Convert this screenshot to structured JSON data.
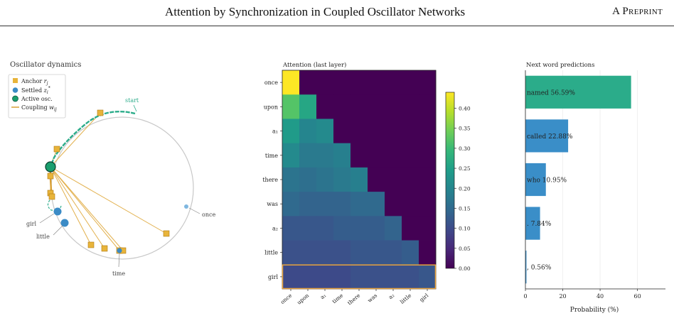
{
  "header": {
    "title": "Attention by Synchronization in Coupled Oscillator Networks",
    "preprint": "A Preprint"
  },
  "panel_oscillator": {
    "title": "Oscillator dynamics",
    "legend": [
      {
        "label": "Anchor r_j",
        "symbol": "square",
        "color": "#e8b43a"
      },
      {
        "label": "Settled z_i*",
        "symbol": "circle",
        "color": "#3b8bc6"
      },
      {
        "label": "Active osc.",
        "symbol": "circle",
        "color": "#1a9e6e"
      },
      {
        "label": "Coupling w_ij",
        "symbol": "line",
        "color": "#d9a035"
      }
    ],
    "labels": {
      "start": "start",
      "once": "once",
      "girl": "girl",
      "little": "little",
      "time": "time"
    }
  },
  "panel_attention": {
    "title": "Attention (last layer)",
    "colorbar_ticks": [
      "0.00",
      "0.05",
      "0.10",
      "0.15",
      "0.20",
      "0.25",
      "0.30",
      "0.35",
      "0.40"
    ]
  },
  "panel_predictions": {
    "title": "Next word predictions",
    "xlabel": "Probability (%)"
  },
  "chart_data": [
    {
      "type": "heatmap",
      "title": "Attention (last layer)",
      "rows": [
        "once",
        "upon",
        "a1",
        "time",
        "there",
        "was",
        "a2",
        "little",
        "girl"
      ],
      "cols": [
        "once",
        "upon",
        "a1",
        "time",
        "there",
        "was",
        "a2",
        "little",
        "girl"
      ],
      "values": [
        [
          0.44,
          null,
          null,
          null,
          null,
          null,
          null,
          null,
          null
        ],
        [
          0.32,
          0.26,
          null,
          null,
          null,
          null,
          null,
          null,
          null
        ],
        [
          0.24,
          0.2,
          0.21,
          null,
          null,
          null,
          null,
          null,
          null
        ],
        [
          0.21,
          0.18,
          0.18,
          0.19,
          null,
          null,
          null,
          null,
          null
        ],
        [
          0.17,
          0.16,
          0.17,
          0.18,
          0.19,
          null,
          null,
          null,
          null
        ],
        [
          0.15,
          0.14,
          0.14,
          0.14,
          0.15,
          0.15,
          null,
          null,
          null
        ],
        [
          0.12,
          0.12,
          0.12,
          0.13,
          0.13,
          0.13,
          0.14,
          null,
          null
        ],
        [
          0.11,
          0.11,
          0.11,
          0.11,
          0.12,
          0.12,
          0.12,
          0.13,
          null
        ],
        [
          0.1,
          0.1,
          0.1,
          0.1,
          0.11,
          0.11,
          0.11,
          0.11,
          0.12
        ]
      ],
      "masked_value": 0,
      "colorbar_range": [
        0,
        0.44
      ],
      "colormap": [
        "#440154",
        "#482878",
        "#3e4989",
        "#31688e",
        "#26828e",
        "#1f9e89",
        "#35b779",
        "#6ece58",
        "#b5de2b",
        "#fde725"
      ],
      "highlight_row": "girl",
      "highlight_color": "#e8a33d",
      "row_tick_labels": [
        "once",
        "upon",
        "a₁",
        "time",
        "there",
        "was",
        "a₂",
        "little",
        "girl"
      ],
      "col_tick_labels": [
        "once",
        "upon",
        "a₁",
        "time",
        "there",
        "was",
        "a₂",
        "little",
        "girl"
      ]
    },
    {
      "type": "bar",
      "orientation": "horizontal",
      "title": "Next word predictions",
      "categories": [
        "named",
        "called",
        "who",
        ".",
        ","
      ],
      "values": [
        56.59,
        22.88,
        10.95,
        7.84,
        0.56
      ],
      "bar_labels": [
        "named 56.59%",
        "called 22.88%",
        "who 10.95%",
        ". 7.84%",
        ", 0.56%"
      ],
      "colors": [
        "#2bac8a",
        "#3a8ec8",
        "#3a8ec8",
        "#3a8ec8",
        "#3a8ec8"
      ],
      "xlabel": "Probability (%)",
      "xlim": [
        0,
        75
      ],
      "xticks": [
        "0",
        "20",
        "40",
        "60"
      ],
      "grid": true
    }
  ]
}
